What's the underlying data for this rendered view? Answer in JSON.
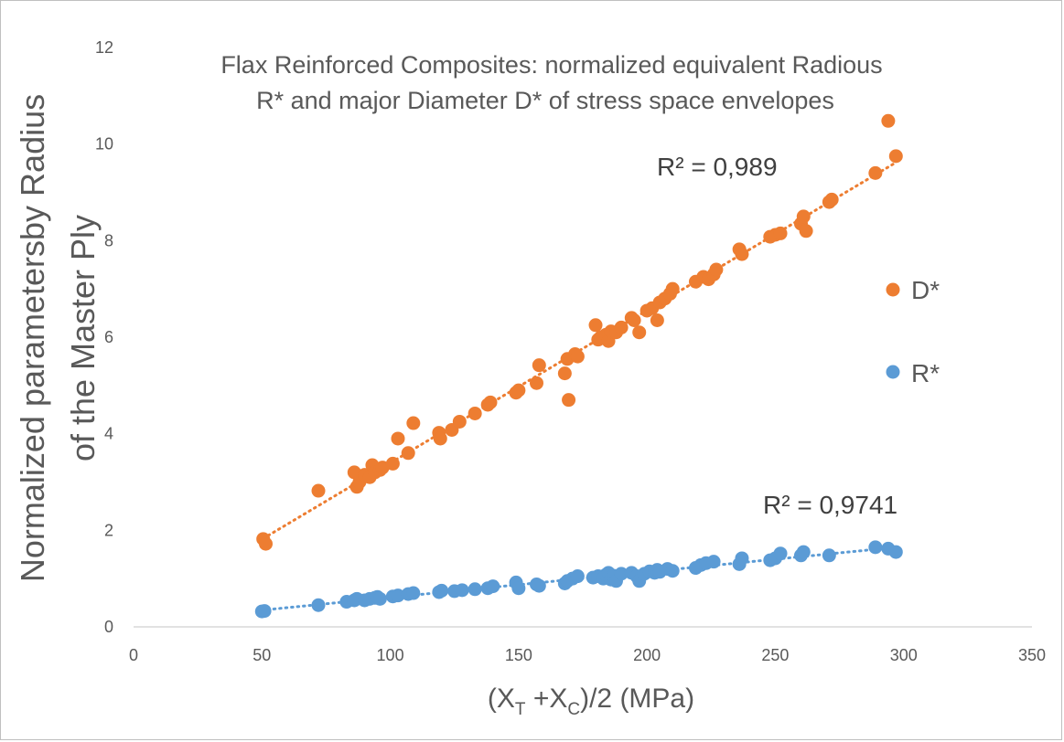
{
  "chart_data": {
    "type": "scatter",
    "title": [
      "Flax Reinforced Composites: normalized equivalent Radious",
      "R* and major Diameter D* of  stress space envelopes"
    ],
    "xlabel": "(X_T +X_C)/2 (MPa)",
    "xlabel_parts": {
      "open": "(X",
      "sub1": "T",
      "mid": " +X",
      "sub2": "C",
      "close": ")/2 (MPa)"
    },
    "ylabel": [
      "Normalized parametersby Radius",
      "of the Master Ply"
    ],
    "xlim": [
      0,
      350
    ],
    "ylim": [
      0,
      12
    ],
    "xticks": [
      0,
      50,
      100,
      150,
      200,
      250,
      300,
      350
    ],
    "yticks": [
      0,
      2,
      4,
      6,
      8,
      10,
      12
    ],
    "grid": false,
    "legend_position": "right",
    "series": [
      {
        "name": "D*",
        "color": "#ED7D31",
        "trendline": "linear",
        "r2_label": "R² = 0,989",
        "points": [
          [
            50.5,
            1.82
          ],
          [
            51.5,
            1.72
          ],
          [
            72,
            2.82
          ],
          [
            86,
            3.2
          ],
          [
            87,
            2.9
          ],
          [
            88,
            3.0
          ],
          [
            90,
            3.15
          ],
          [
            92,
            3.1
          ],
          [
            93,
            3.35
          ],
          [
            94,
            3.2
          ],
          [
            96,
            3.25
          ],
          [
            97,
            3.3
          ],
          [
            101,
            3.38
          ],
          [
            103,
            3.9
          ],
          [
            107,
            3.6
          ],
          [
            109,
            4.22
          ],
          [
            119,
            4.02
          ],
          [
            119.5,
            3.9
          ],
          [
            124,
            4.08
          ],
          [
            127,
            4.25
          ],
          [
            133,
            4.42
          ],
          [
            138,
            4.6
          ],
          [
            139,
            4.65
          ],
          [
            149,
            4.85
          ],
          [
            150,
            4.9
          ],
          [
            157,
            5.05
          ],
          [
            158,
            5.42
          ],
          [
            168,
            5.25
          ],
          [
            169,
            5.55
          ],
          [
            169.5,
            4.7
          ],
          [
            172,
            5.65
          ],
          [
            173,
            5.6
          ],
          [
            180,
            6.25
          ],
          [
            181,
            5.95
          ],
          [
            182,
            6.0
          ],
          [
            184,
            6.05
          ],
          [
            185,
            5.92
          ],
          [
            186,
            6.12
          ],
          [
            188,
            6.1
          ],
          [
            190,
            6.2
          ],
          [
            194,
            6.4
          ],
          [
            195,
            6.35
          ],
          [
            197,
            6.1
          ],
          [
            200,
            6.55
          ],
          [
            202,
            6.6
          ],
          [
            204,
            6.35
          ],
          [
            205,
            6.72
          ],
          [
            207,
            6.8
          ],
          [
            209,
            6.9
          ],
          [
            210,
            7.0
          ],
          [
            219,
            7.15
          ],
          [
            222,
            7.25
          ],
          [
            224,
            7.2
          ],
          [
            226,
            7.3
          ],
          [
            227,
            7.4
          ],
          [
            236,
            7.82
          ],
          [
            237,
            7.72
          ],
          [
            248,
            8.08
          ],
          [
            250,
            8.12
          ],
          [
            252,
            8.15
          ],
          [
            260,
            8.35
          ],
          [
            261,
            8.5
          ],
          [
            262,
            8.2
          ],
          [
            271,
            8.8
          ],
          [
            272,
            8.85
          ],
          [
            289,
            9.4
          ],
          [
            294,
            10.48
          ],
          [
            297,
            9.75
          ]
        ]
      },
      {
        "name": "R*",
        "color": "#5B9BD5",
        "trendline": "linear",
        "r2_label": "R² = 0,9741",
        "points": [
          [
            50,
            0.32
          ],
          [
            51,
            0.33
          ],
          [
            72,
            0.45
          ],
          [
            83,
            0.52
          ],
          [
            86,
            0.55
          ],
          [
            87,
            0.58
          ],
          [
            90,
            0.55
          ],
          [
            92,
            0.58
          ],
          [
            94,
            0.6
          ],
          [
            95,
            0.62
          ],
          [
            96,
            0.58
          ],
          [
            101,
            0.63
          ],
          [
            103,
            0.65
          ],
          [
            107,
            0.68
          ],
          [
            109,
            0.7
          ],
          [
            119,
            0.72
          ],
          [
            120,
            0.75
          ],
          [
            125,
            0.74
          ],
          [
            128,
            0.76
          ],
          [
            133,
            0.78
          ],
          [
            138,
            0.8
          ],
          [
            140,
            0.84
          ],
          [
            149,
            0.92
          ],
          [
            150,
            0.8
          ],
          [
            157,
            0.88
          ],
          [
            158,
            0.85
          ],
          [
            168,
            0.9
          ],
          [
            169,
            0.95
          ],
          [
            171,
            1.0
          ],
          [
            173,
            1.05
          ],
          [
            179,
            1.02
          ],
          [
            181,
            1.05
          ],
          [
            183,
            1.0
          ],
          [
            184,
            1.08
          ],
          [
            185,
            1.12
          ],
          [
            186,
            0.98
          ],
          [
            187,
            1.06
          ],
          [
            188,
            0.95
          ],
          [
            190,
            1.1
          ],
          [
            194,
            1.12
          ],
          [
            196,
            1.05
          ],
          [
            197,
            0.95
          ],
          [
            199,
            1.1
          ],
          [
            201,
            1.15
          ],
          [
            203,
            1.12
          ],
          [
            204,
            1.18
          ],
          [
            205,
            1.14
          ],
          [
            208,
            1.2
          ],
          [
            210,
            1.16
          ],
          [
            219,
            1.22
          ],
          [
            221,
            1.28
          ],
          [
            223,
            1.32
          ],
          [
            226,
            1.35
          ],
          [
            236,
            1.3
          ],
          [
            237,
            1.42
          ],
          [
            248,
            1.38
          ],
          [
            250,
            1.42
          ],
          [
            252,
            1.52
          ],
          [
            260,
            1.48
          ],
          [
            261,
            1.55
          ],
          [
            271,
            1.48
          ],
          [
            289,
            1.65
          ],
          [
            294,
            1.62
          ],
          [
            297,
            1.55
          ]
        ]
      }
    ]
  }
}
